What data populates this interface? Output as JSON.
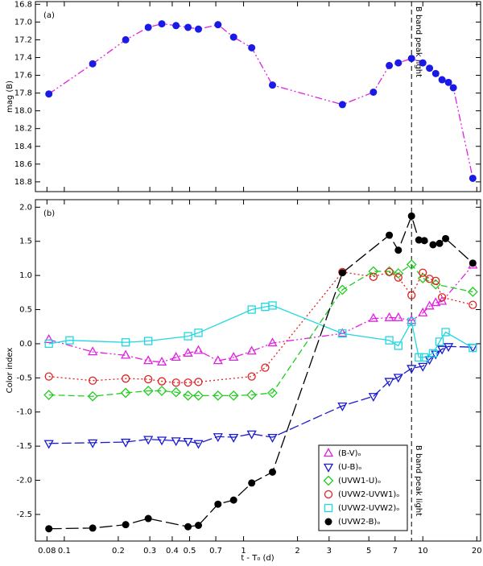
{
  "chart_data": [
    {
      "type": "line",
      "panel_label": "(a)",
      "ylabel": "mag (B)",
      "inverted": true,
      "xlog": true,
      "xlim": [
        0.069,
        21
      ],
      "ylim": [
        16.77,
        18.91
      ],
      "yticks": [
        16.8,
        {
          "value": 17,
          "label": "17.0"
        },
        17.2,
        17.4,
        17.6,
        17.8,
        {
          "value": 18,
          "label": "18.0"
        },
        18.2,
        18.4,
        18.6,
        18.8
      ],
      "peak_x": 8.65,
      "annotation": "B band peak light",
      "series": [
        {
          "name": "B",
          "color": "#1a1ae6",
          "line_color": "#e020e0",
          "marker": "filled-circle",
          "dash": "9,3,2,3,2,3",
          "x": [
            0.082,
            0.144,
            0.22,
            0.294,
            0.35,
            0.42,
            0.49,
            0.56,
            0.72,
            0.88,
            1.11,
            1.45,
            3.56,
            5.3,
            6.5,
            7.3,
            8.65,
            10.0,
            10.9,
            11.8,
            12.8,
            13.9,
            14.8,
            19.0
          ],
          "values": [
            17.81,
            17.47,
            17.2,
            17.06,
            17.02,
            17.04,
            17.06,
            17.08,
            17.03,
            17.17,
            17.29,
            17.71,
            17.93,
            17.79,
            17.49,
            17.46,
            17.41,
            17.46,
            17.52,
            17.58,
            17.65,
            17.68,
            17.74,
            18.76
          ]
        }
      ]
    },
    {
      "type": "line",
      "panel_label": "(b)",
      "ylabel": "Color index",
      "xlabel": "t - T₀     (d)",
      "xlog": true,
      "xlim": [
        0.069,
        21
      ],
      "ylim": [
        -2.89,
        2.11
      ],
      "xticks": [
        0.08,
        0.1,
        0.2,
        0.3,
        0.4,
        0.5,
        0.7,
        1,
        2,
        3,
        5,
        7,
        10,
        20
      ],
      "yticks": [
        {
          "value": 2,
          "label": "2.0"
        },
        1.5,
        {
          "value": 1,
          "label": "1.0"
        },
        0.5,
        {
          "value": 0,
          "label": "0.0"
        },
        -0.5,
        {
          "value": -1,
          "label": "-1.0"
        },
        -1.5,
        {
          "value": -2,
          "label": "-2.0"
        },
        -2.5
      ],
      "peak_x": 8.65,
      "annotation": "B band peak light",
      "legend": "lower right",
      "series": [
        {
          "name": "(B-V)ₒ",
          "color": "#e020e0",
          "marker": "triangle-up",
          "dash": "9,3,2,3,2,3",
          "x": [
            0.082,
            0.144,
            0.22,
            0.294,
            0.35,
            0.42,
            0.49,
            0.56,
            0.72,
            0.88,
            1.11,
            1.45,
            3.56,
            5.3,
            6.5,
            7.3,
            8.65,
            10.0,
            10.9,
            11.8,
            12.8,
            19.0
          ],
          "values": [
            0.06,
            -0.12,
            -0.17,
            -0.25,
            -0.27,
            -0.2,
            -0.14,
            -0.1,
            -0.25,
            -0.2,
            -0.11,
            0.01,
            0.15,
            0.37,
            0.38,
            0.38,
            0.34,
            0.45,
            0.55,
            0.6,
            0.62,
            1.15
          ]
        },
        {
          "name": "(U-B)ₒ",
          "color": "#1a1ad0",
          "marker": "triangle-down",
          "dash": "12,4",
          "x": [
            0.082,
            0.144,
            0.22,
            0.294,
            0.35,
            0.42,
            0.49,
            0.56,
            0.72,
            0.88,
            1.11,
            1.45,
            3.56,
            5.3,
            6.5,
            7.3,
            8.65,
            10.0,
            10.9,
            11.8,
            12.8,
            13.9,
            19.0
          ],
          "values": [
            -1.46,
            -1.45,
            -1.44,
            -1.4,
            -1.41,
            -1.42,
            -1.43,
            -1.46,
            -1.36,
            -1.37,
            -1.32,
            -1.37,
            -0.91,
            -0.77,
            -0.55,
            -0.49,
            -0.36,
            -0.33,
            -0.23,
            -0.15,
            -0.08,
            -0.04,
            -0.05
          ]
        },
        {
          "name": "(UVW1-U)ₒ",
          "color": "#22cc22",
          "marker": "diamond",
          "dash": "8,4",
          "x": [
            0.082,
            0.144,
            0.22,
            0.294,
            0.35,
            0.42,
            0.49,
            0.56,
            0.72,
            0.88,
            1.11,
            1.45,
            3.56,
            5.3,
            6.5,
            7.3,
            8.65,
            10.0,
            11.8,
            19.0
          ],
          "values": [
            -0.75,
            -0.77,
            -0.72,
            -0.69,
            -0.69,
            -0.71,
            -0.76,
            -0.76,
            -0.76,
            -0.76,
            -0.75,
            -0.72,
            0.79,
            1.06,
            1.06,
            1.03,
            1.16,
            0.96,
            0.87,
            0.76
          ]
        },
        {
          "name": "(UVW2-UVW1)ₒ",
          "color": "#e02020",
          "marker": "circle",
          "dash": "2,3",
          "x": [
            0.082,
            0.144,
            0.22,
            0.294,
            0.35,
            0.42,
            0.49,
            0.56,
            1.11,
            1.32,
            3.56,
            5.3,
            6.5,
            7.3,
            8.65,
            10.0,
            10.9,
            11.8,
            12.8,
            19.0
          ],
          "values": [
            -0.48,
            -0.54,
            -0.51,
            -0.52,
            -0.55,
            -0.57,
            -0.57,
            -0.56,
            -0.48,
            -0.35,
            1.05,
            0.98,
            1.05,
            0.97,
            0.71,
            1.04,
            0.95,
            0.92,
            0.68,
            0.57
          ]
        },
        {
          "name": "(UVW2-UVW2)ₒ",
          "color": "#20d8e0",
          "marker": "square",
          "dash": "",
          "x": [
            0.082,
            0.107,
            0.22,
            0.294,
            0.49,
            0.56,
            1.11,
            1.32,
            1.45,
            3.56,
            6.5,
            7.3,
            8.65,
            9.5,
            10.2,
            11.4,
            12.4,
            13.4,
            19.0
          ],
          "values": [
            0.0,
            0.05,
            0.02,
            0.04,
            0.11,
            0.16,
            0.5,
            0.54,
            0.56,
            0.15,
            0.05,
            -0.03,
            0.32,
            -0.2,
            -0.2,
            -0.14,
            0.03,
            0.17,
            -0.06
          ]
        },
        {
          "name": "(UVW2-B)ₒ",
          "color": "#000000",
          "marker": "filled-circle",
          "dash": "16,5",
          "x": [
            0.082,
            0.144,
            0.22,
            0.294,
            0.49,
            0.56,
            0.72,
            0.88,
            1.11,
            1.45,
            3.56,
            6.5,
            7.3,
            8.65,
            9.5,
            10.2,
            11.4,
            12.4,
            13.4,
            19.0
          ],
          "values": [
            -2.71,
            -2.7,
            -2.65,
            -2.56,
            -2.68,
            -2.66,
            -2.35,
            -2.29,
            -2.04,
            -1.88,
            1.04,
            1.59,
            1.37,
            1.87,
            1.52,
            1.51,
            1.45,
            1.47,
            1.54,
            1.18
          ]
        }
      ]
    }
  ]
}
